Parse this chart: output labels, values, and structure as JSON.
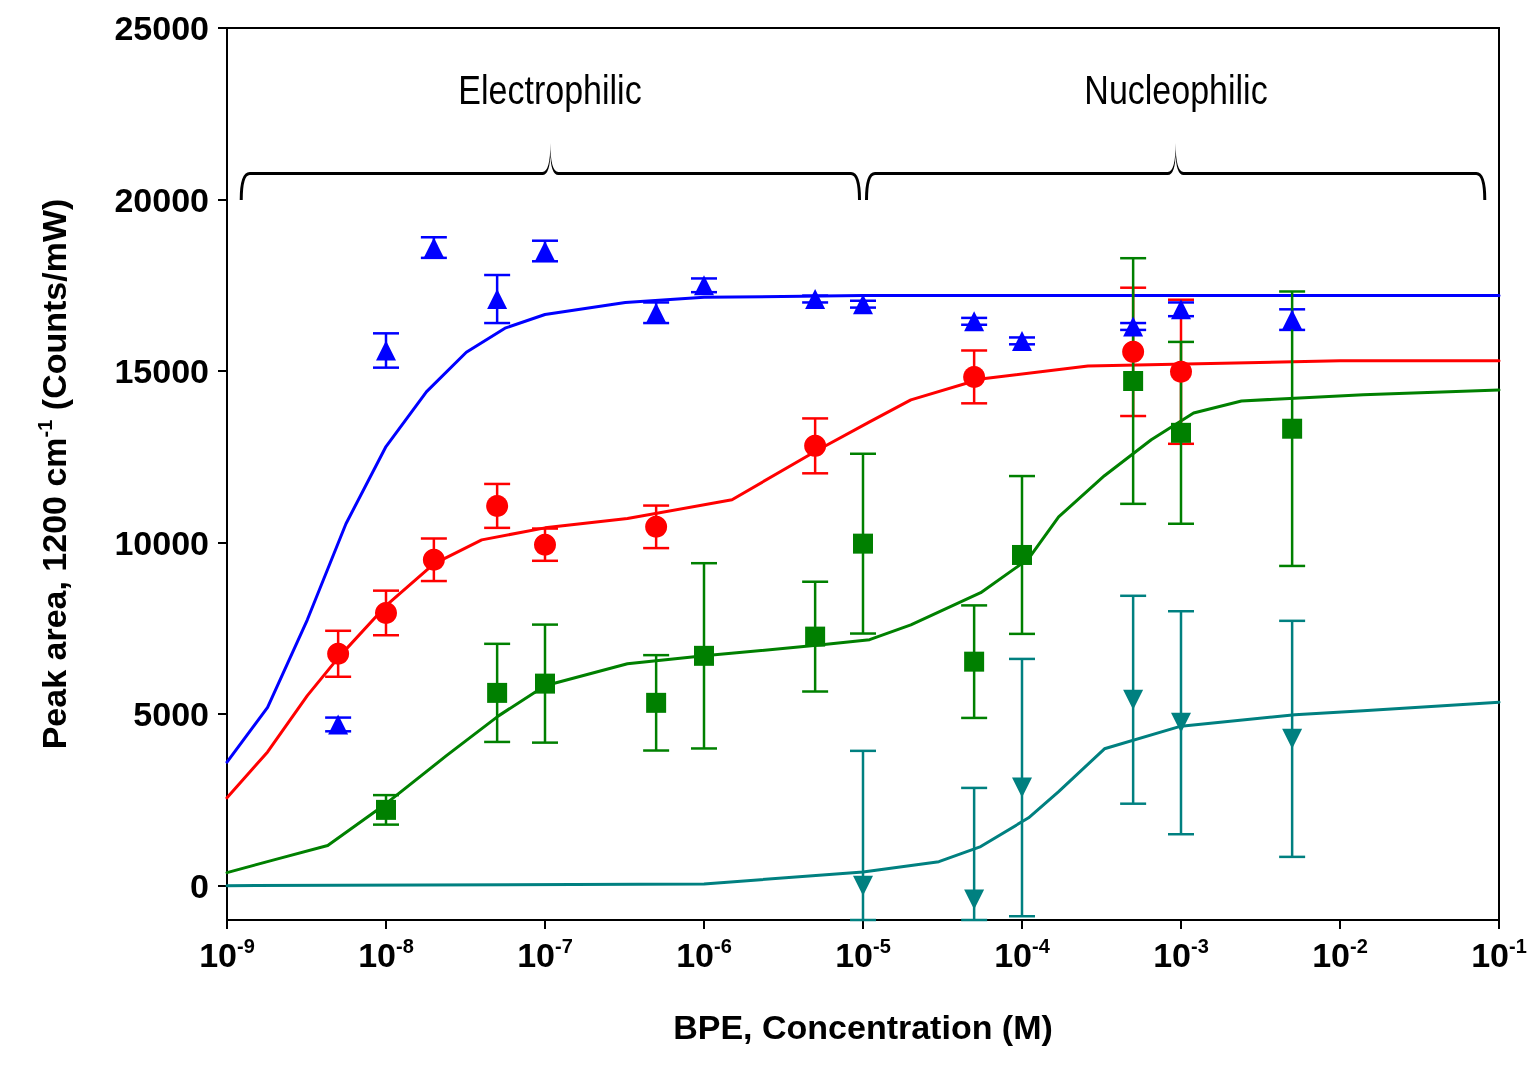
{
  "chart_data": {
    "type": "scatter",
    "xlabel": "BPE, Concentration (M)",
    "ylabel": "Peak area, 1200 cm$^{-1}$ (Counts/mW)",
    "log": "x",
    "grid": false,
    "xlim": [
      1e-09,
      0.1
    ],
    "xticks": [
      {
        "value": 1e-09,
        "label": "10$^{-9}$"
      },
      {
        "value": 1e-08,
        "label": "10$^{-8}$"
      },
      {
        "value": 1e-07,
        "label": "10$^{-7}$"
      },
      {
        "value": 1e-06,
        "label": "10$^{-6}$"
      },
      {
        "value": 1e-05,
        "label": "10$^{-5}$"
      },
      {
        "value": 0.0001,
        "label": "10$^{-4}$"
      },
      {
        "value": 0.001,
        "label": "10$^{-3}$"
      },
      {
        "value": 0.01,
        "label": "10$^{-2}$"
      },
      {
        "value": 0.1,
        "label": "10$^{-1}$"
      }
    ],
    "ylim": [
      -1000,
      25000
    ],
    "yticks": [
      0,
      5000,
      10000,
      15000,
      20000,
      25000
    ],
    "annotations": [
      "Electrophilic",
      "Nucleophilic"
    ],
    "series": [
      {
        "type": "scatter",
        "marker": "triangle",
        "color": "#0000ff",
        "x": [
          5e-09,
          1e-08,
          2e-08,
          5e-08,
          1e-07,
          5e-07,
          1e-06,
          5e-06,
          1e-05,
          5e-05,
          0.0001,
          0.0005,
          0.001,
          0.005
        ],
        "values": [
          4700,
          15600,
          18600,
          17100,
          18500,
          16700,
          17500,
          17100,
          16950,
          16450,
          15880,
          16300,
          16800,
          16500
        ],
        "errors": [
          200,
          500,
          300,
          700,
          300,
          300,
          200,
          100,
          100,
          100,
          100,
          100,
          200,
          300
        ]
      },
      {
        "type": "scatter",
        "marker": "circle",
        "color": "#ff0000",
        "x": [
          5e-09,
          1e-08,
          2e-08,
          5e-08,
          1e-07,
          5e-07,
          5e-06,
          5e-05,
          0.0005,
          0.001
        ],
        "values": [
          6760,
          7950,
          9500,
          11070,
          9940,
          10460,
          12820,
          14830,
          15560,
          14980
        ],
        "errors": [
          670,
          650,
          620,
          640,
          470,
          620,
          800,
          770,
          1870,
          2100
        ]
      },
      {
        "type": "scatter",
        "marker": "square",
        "color": "#008000",
        "x": [
          1e-08,
          5e-08,
          1e-07,
          5e-07,
          1e-06,
          5e-06,
          1e-05,
          5e-05,
          0.0001,
          0.0005,
          0.001,
          0.005
        ],
        "values": [
          2210,
          5620,
          5890,
          5330,
          6700,
          7260,
          9970,
          6530,
          9640,
          14710,
          13200,
          13320
        ],
        "errors": [
          430,
          1430,
          1720,
          1390,
          2700,
          1600,
          2620,
          1640,
          2300,
          3580,
          2650,
          4000
        ]
      },
      {
        "type": "scatter",
        "marker": "triangle-down",
        "color": "#008080",
        "x": [
          1e-05,
          5e-05,
          0.0001,
          0.0005,
          0.001,
          0.005
        ],
        "values": [
          0,
          -400,
          2860,
          5420,
          4750,
          4280
        ],
        "errors": [
          [
            -1000,
            3930
          ],
          [
            -1000,
            2850
          ],
          3750,
          3030,
          3250,
          3440
        ]
      },
      {
        "type": "line",
        "marker": "none",
        "color": "#0000ff",
        "x": [
          1e-09,
          1.8e-09,
          3.2e-09,
          5.6e-09,
          1e-08,
          1.8e-08,
          3.2e-08,
          5.6e-08,
          1e-07,
          3.2e-07,
          1e-06,
          1e-05,
          0.1
        ],
        "values": [
          3600,
          5200,
          7750,
          10550,
          12800,
          14400,
          15550,
          16250,
          16650,
          17000,
          17150,
          17200,
          17200
        ]
      },
      {
        "type": "line",
        "marker": "none",
        "color": "#ff0000",
        "x": [
          1e-09,
          1.8e-09,
          3.2e-09,
          5e-09,
          1e-08,
          2e-08,
          4e-08,
          1e-07,
          3.3e-07,
          1.5e-06,
          5.2e-06,
          1.1e-05,
          2e-05,
          5.5e-05,
          0.00026,
          0.01,
          0.1
        ],
        "values": [
          2560,
          3900,
          5540,
          6640,
          8160,
          9380,
          10080,
          10430,
          10700,
          11250,
          12700,
          13520,
          14160,
          14770,
          15150,
          15300,
          15300
        ]
      },
      {
        "type": "line",
        "marker": "none",
        "color": "#008000",
        "x": [
          1e-09,
          2e-09,
          4.3e-09,
          1e-08,
          2.4e-08,
          5.1e-08,
          1e-07,
          3.3e-07,
          1e-06,
          5.5e-06,
          1.1e-05,
          2e-05,
          5.5e-05,
          0.00011,
          0.00017,
          0.00033,
          0.00065,
          0.0012,
          0.0024,
          0.014,
          0.1
        ],
        "values": [
          380,
          760,
          1170,
          2390,
          3790,
          4950,
          5830,
          6470,
          6700,
          7020,
          7170,
          7600,
          8540,
          9530,
          10750,
          11950,
          13000,
          13780,
          14130,
          14310,
          14450
        ]
      },
      {
        "type": "line",
        "marker": "none",
        "color": "#008080",
        "x": [
          1e-09,
          1e-06,
          1e-05,
          3e-05,
          5.5e-05,
          0.00011,
          0.00017,
          0.00033,
          0.001,
          0.0052,
          0.014,
          0.1
        ],
        "values": [
          0,
          50,
          400,
          700,
          1140,
          1980,
          2740,
          3990,
          4650,
          4980,
          5100,
          5350
        ]
      }
    ]
  }
}
